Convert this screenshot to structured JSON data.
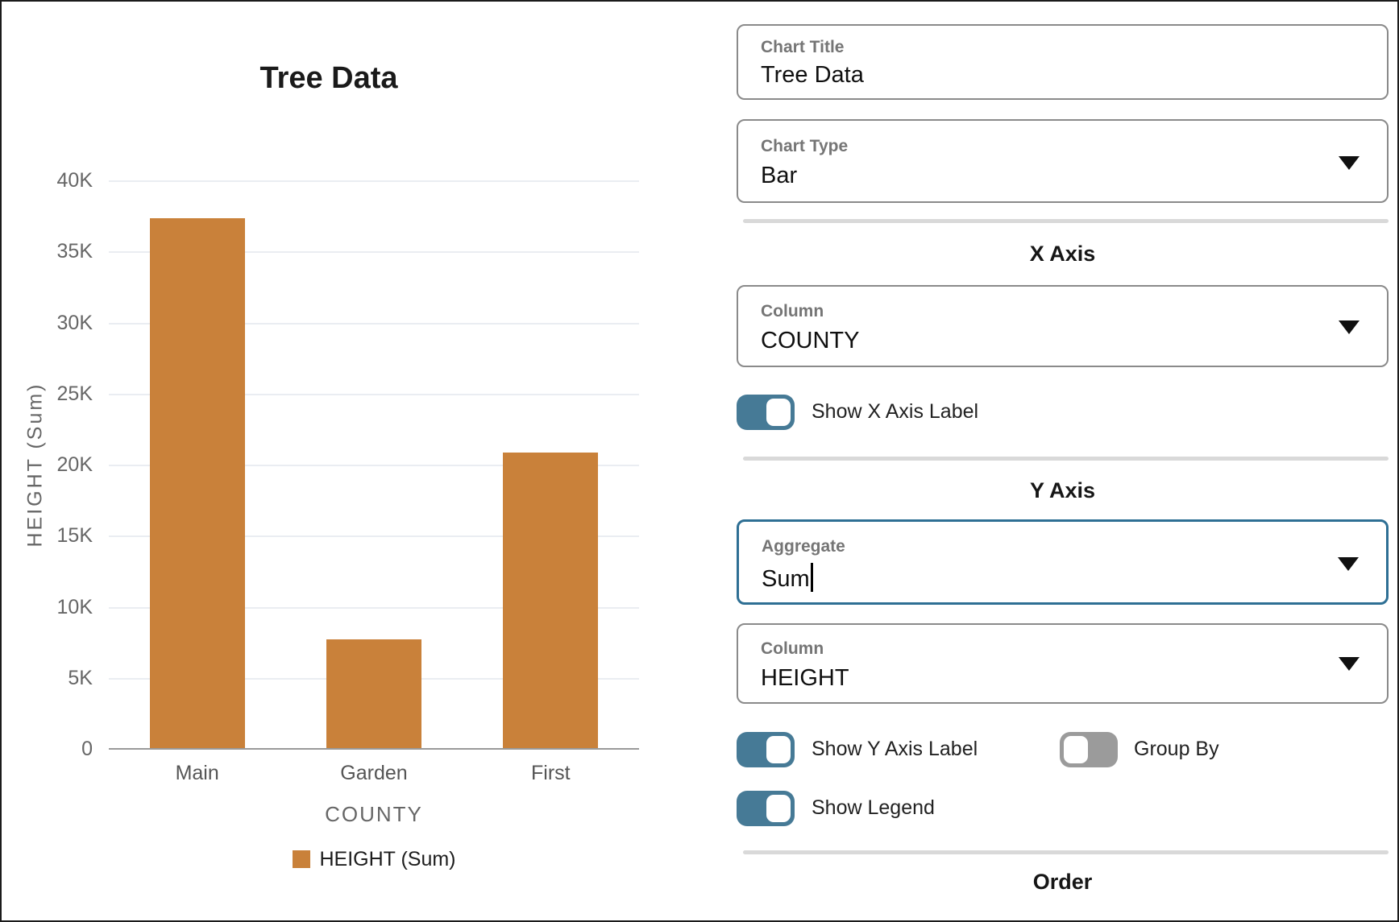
{
  "chart_data": {
    "type": "bar",
    "title": "Tree Data",
    "categories": [
      "Main",
      "Garden",
      "First"
    ],
    "values": [
      37300,
      7650,
      20800
    ],
    "xlabel": "COUNTY",
    "ylabel": "HEIGHT (Sum)",
    "ylim": [
      0,
      40000
    ],
    "ytick_step": 5000,
    "ytick_labels": [
      "0",
      "5K",
      "10K",
      "15K",
      "20K",
      "25K",
      "30K",
      "35K",
      "40K"
    ],
    "grid": true,
    "legend_position": "bottom",
    "legend": [
      "HEIGHT (Sum)"
    ]
  },
  "settings_panel": {
    "chart_title_field": {
      "label": "Chart Title",
      "value": "Tree Data"
    },
    "chart_type_field": {
      "label": "Chart Type",
      "value": "Bar"
    },
    "x_axis": {
      "heading": "X Axis",
      "column_field": {
        "label": "Column",
        "value": "COUNTY"
      },
      "show_label_toggle": {
        "label": "Show X Axis Label",
        "state": "on"
      }
    },
    "y_axis": {
      "heading": "Y Axis",
      "aggregate_field": {
        "label": "Aggregate",
        "value": "Sum"
      },
      "column_field": {
        "label": "Column",
        "value": "HEIGHT"
      },
      "show_label_toggle": {
        "label": "Show Y Axis Label",
        "state": "on"
      },
      "group_by_toggle": {
        "label": "Group By",
        "state": "off"
      },
      "show_legend_toggle": {
        "label": "Show Legend",
        "state": "on"
      }
    },
    "order_section": {
      "heading": "Order"
    }
  },
  "colors": {
    "bar": "#C9813A",
    "toggle_on": "#467A96",
    "toggle_off": "#9B9B9B",
    "focus_border": "#2E6F94",
    "gridline": "#EAEDF2",
    "axis_line": "#9A9A9A"
  }
}
